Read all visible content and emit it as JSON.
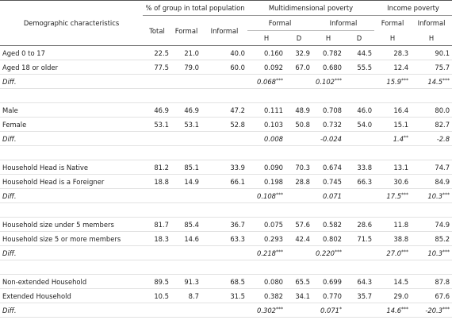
{
  "table": {
    "header": {
      "label": "Demographic characteristics",
      "groups": [
        "% of group in total population",
        "Multidimensional poverty",
        "Income poverty"
      ],
      "subheaders": [
        "Total",
        "Formal",
        "Informal",
        "Formal",
        "Informal",
        "Formal",
        "Informal"
      ],
      "measures": [
        "H",
        "D",
        "H",
        "D",
        "H",
        "H"
      ]
    },
    "sections": [
      {
        "rows": [
          [
            "Aged 0 to 17",
            "22.5",
            "21.0",
            "40.0",
            "0.160",
            "32.9",
            "0.782",
            "44.5",
            "28.3",
            "90.1"
          ],
          [
            "Aged 18 or older",
            "77.5",
            "79.0",
            "60.0",
            "0.092",
            "67.0",
            "0.680",
            "55.5",
            "12.4",
            "75.7"
          ],
          [
            "Diff.",
            null,
            null,
            null,
            "0.068***",
            null,
            "0.102***",
            null,
            "15.9***",
            "14.5***"
          ]
        ]
      },
      {
        "rows": [
          [
            "Male",
            "46.9",
            "46.9",
            "47.2",
            "0.111",
            "48.9",
            "0.708",
            "46.0",
            "16.4",
            "80.0"
          ],
          [
            "Female",
            "53.1",
            "53.1",
            "52.8",
            "0.103",
            "50.8",
            "0.732",
            "54.0",
            "15.1",
            "82.7"
          ],
          [
            "Diff.",
            null,
            null,
            null,
            "0.008",
            null,
            "-0.024",
            null,
            "1.4**",
            "-2.8"
          ]
        ]
      },
      {
        "rows": [
          [
            "Household Head is Native",
            "81.2",
            "85.1",
            "33.9",
            "0.090",
            "70.3",
            "0.674",
            "33.8",
            "13.1",
            "74.7"
          ],
          [
            "Household Head is a Foreigner",
            "18.8",
            "14.9",
            "66.1",
            "0.198",
            "28.8",
            "0.745",
            "66.3",
            "30.6",
            "84.9"
          ],
          [
            "Diff.",
            null,
            null,
            null,
            "0.108***",
            null,
            "0.071",
            null,
            "17.5***",
            "10.3***"
          ]
        ]
      },
      {
        "rows": [
          [
            "Household size under 5 members",
            "81.7",
            "85.4",
            "36.7",
            "0.075",
            "57.6",
            "0.582",
            "28.6",
            "11.8",
            "74.9"
          ],
          [
            "Household size 5 or more members",
            "18.3",
            "14.6",
            "63.3",
            "0.293",
            "42.4",
            "0.802",
            "71.5",
            "38.8",
            "85.2"
          ],
          [
            "Diff.",
            null,
            null,
            null,
            "0.218***",
            null,
            "0.220***",
            null,
            "27.0***",
            "10.3***"
          ]
        ]
      },
      {
        "rows": [
          [
            "Non-extended Household",
            "89.5",
            "91.3",
            "68.5",
            "0.080",
            "65.5",
            "0.699",
            "64.3",
            "14.5",
            "87.8"
          ],
          [
            "Extended Household",
            "10.5",
            "8.7",
            "31.5",
            "0.382",
            "34.1",
            "0.770",
            "35.7",
            "29.0",
            "67.6"
          ],
          [
            "Diff.",
            null,
            null,
            null,
            "0.302***",
            null,
            "0.071*",
            null,
            "14.6***",
            "-20.3***"
          ]
        ]
      }
    ]
  }
}
